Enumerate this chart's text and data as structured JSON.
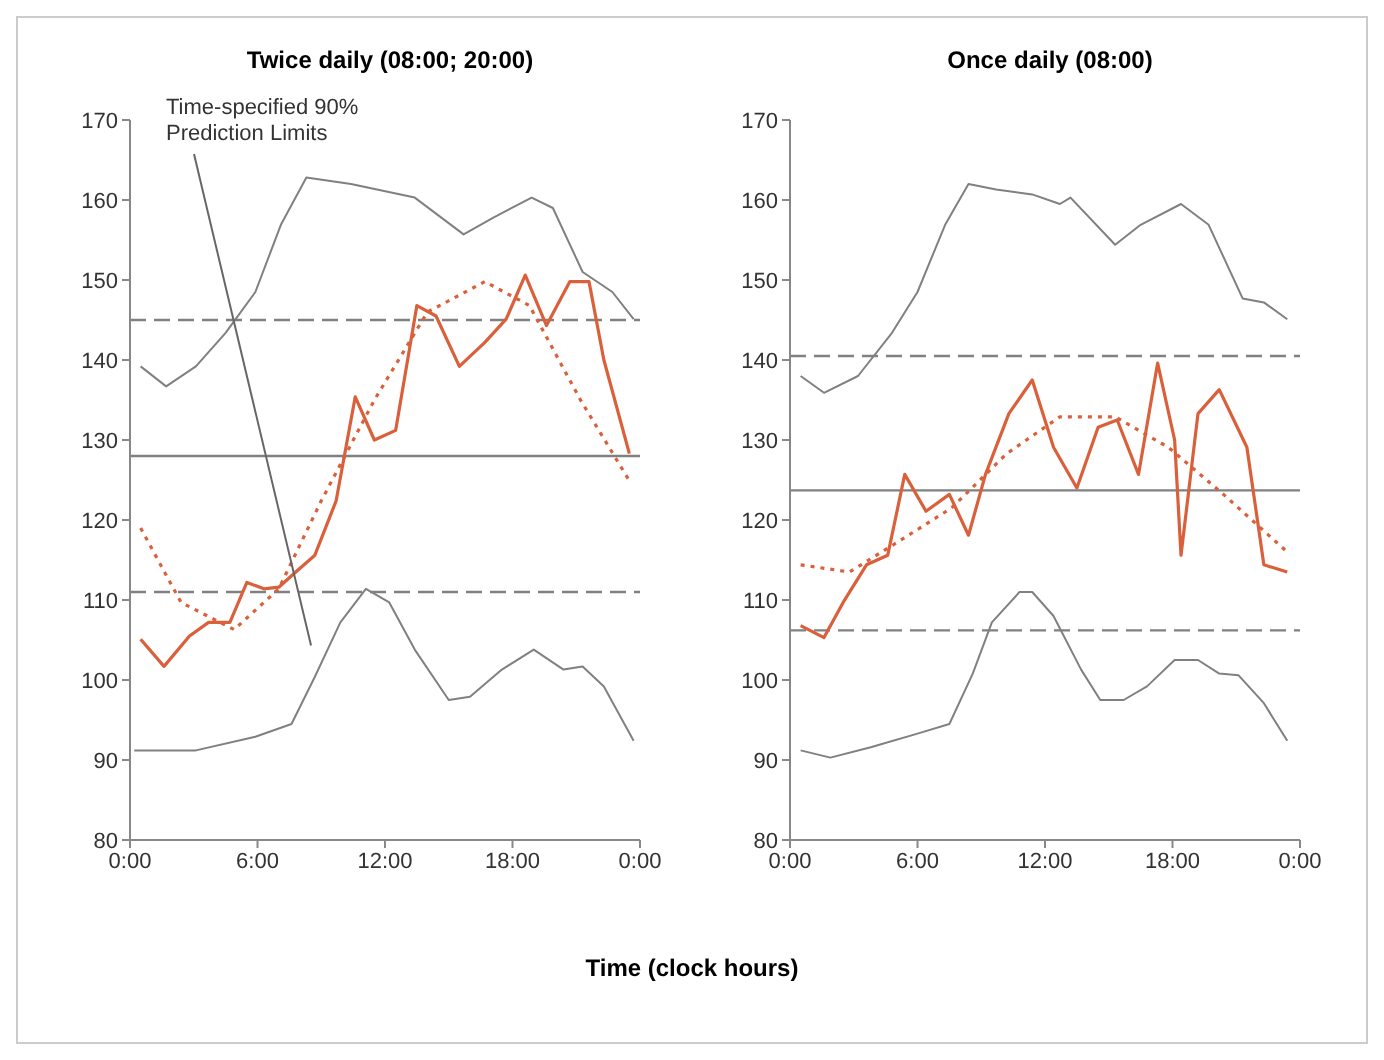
{
  "chart_data": [
    {
      "type": "line",
      "title": "Twice daily (08:00; 20:00)",
      "xlabel": "Time (clock hours)",
      "xlim": [
        0,
        24
      ],
      "xticks": [
        {
          "value": 0,
          "label": "0:00"
        },
        {
          "value": 6,
          "label": "6:00"
        },
        {
          "value": 12,
          "label": "12:00"
        },
        {
          "value": 18,
          "label": "18:00"
        },
        {
          "value": 24,
          "label": "0:00"
        }
      ],
      "ylim": [
        80,
        170
      ],
      "yticks": [
        80,
        90,
        100,
        110,
        120,
        130,
        140,
        150,
        160,
        170
      ],
      "annotations": [
        "Time-specified 90% Prediction Limits"
      ],
      "ref_lines": [
        {
          "axis": "y",
          "value": 145,
          "color": "#808080",
          "line_style": "dashed"
        },
        {
          "axis": "y",
          "value": 128,
          "color": "#808080",
          "line_style": "solid"
        },
        {
          "axis": "y",
          "value": 111,
          "color": "#808080",
          "line_style": "dashed"
        }
      ],
      "series": [
        {
          "color": "#808080",
          "line_style": "solid",
          "x": [
            0.5,
            1.7,
            3.1,
            4.5,
            5.9,
            7.1,
            8.3,
            10.4,
            13.4,
            15.7,
            17.1,
            18.9,
            19.9,
            21.3,
            22.7,
            23.7
          ],
          "values": [
            139.2,
            136.7,
            139.2,
            143.4,
            148.5,
            156.9,
            162.8,
            162,
            160.3,
            155.7,
            157.8,
            160.3,
            159,
            151,
            148.5,
            145.1
          ]
        },
        {
          "color": "#808080",
          "line_style": "solid",
          "x": [
            0.2,
            3.1,
            5.9,
            7.6,
            8.7,
            9.9,
            11.1,
            12.2,
            13.4,
            15,
            16,
            17.5,
            19,
            20.4,
            21.3,
            22.3,
            23.7
          ],
          "values": [
            91.2,
            91.2,
            92.9,
            94.5,
            100.4,
            107.2,
            111.4,
            109.7,
            103.8,
            97.5,
            97.9,
            101.3,
            103.8,
            101.3,
            101.7,
            99.2,
            92.4
          ]
        },
        {
          "color": "#d9603b",
          "line_style": "dotted",
          "x": [
            0.5,
            2.4,
            4.9,
            7,
            9,
            11.5,
            14,
            16.7,
            18.8,
            21.2,
            23.5
          ],
          "values": [
            119,
            109.7,
            106.3,
            111.4,
            122.4,
            135,
            146,
            149.8,
            146.8,
            135,
            124.9
          ]
        },
        {
          "color": "#d9603b",
          "line_style": "solid",
          "x": [
            0.5,
            1.6,
            2.8,
            3.7,
            4.7,
            5.5,
            6.3,
            7,
            7.8,
            8.7,
            9.7,
            10.6,
            11.5,
            12.5,
            13.5,
            14.4,
            15.5,
            16.7,
            17.7,
            18.6,
            19.6,
            20.7,
            21.6,
            22.3,
            23.5
          ],
          "values": [
            105.1,
            101.7,
            105.5,
            107.2,
            107.2,
            112.2,
            111.4,
            111.6,
            113.5,
            115.6,
            122.4,
            135.4,
            130,
            131.2,
            146.8,
            145.5,
            139.2,
            142.2,
            145.1,
            150.6,
            144.3,
            149.8,
            149.8,
            140,
            128.3
          ]
        }
      ]
    },
    {
      "type": "line",
      "title": "Once daily (08:00)",
      "xlim": [
        0,
        24
      ],
      "xticks": [
        {
          "value": 0,
          "label": "0:00"
        },
        {
          "value": 6,
          "label": "6:00"
        },
        {
          "value": 12,
          "label": "12:00"
        },
        {
          "value": 18,
          "label": "18:00"
        },
        {
          "value": 24,
          "label": "0:00"
        }
      ],
      "ylim": [
        80,
        170
      ],
      "yticks": [
        80,
        90,
        100,
        110,
        120,
        130,
        140,
        150,
        160,
        170
      ],
      "ref_lines": [
        {
          "axis": "y",
          "value": 140.5,
          "color": "#808080",
          "line_style": "dashed"
        },
        {
          "axis": "y",
          "value": 123.7,
          "color": "#808080",
          "line_style": "solid"
        },
        {
          "axis": "y",
          "value": 106.2,
          "color": "#808080",
          "line_style": "dashed"
        }
      ],
      "series": [
        {
          "color": "#808080",
          "line_style": "solid",
          "x": [
            0.5,
            1.6,
            3.2,
            4.8,
            6,
            7.3,
            8.4,
            9.7,
            11.4,
            12.7,
            13.2,
            15.3,
            16.5,
            18.4,
            19.7,
            21.3,
            22.3,
            23.4
          ],
          "values": [
            138,
            135.9,
            138,
            143.4,
            148.5,
            156.9,
            162,
            161.3,
            160.7,
            159.5,
            160.3,
            154.4,
            156.9,
            159.5,
            156.9,
            147.7,
            147.2,
            145.1
          ]
        },
        {
          "color": "#808080",
          "line_style": "solid",
          "x": [
            0.5,
            1.9,
            3.8,
            6,
            7.5,
            8.6,
            9.5,
            10.8,
            11.4,
            12.4,
            13.7,
            14.6,
            15.7,
            16.8,
            18.1,
            19.2,
            20.2,
            21.1,
            22.3,
            23.4
          ],
          "values": [
            91.2,
            90.3,
            91.6,
            93.3,
            94.5,
            100.8,
            107.2,
            111,
            111,
            108,
            101.3,
            97.5,
            97.5,
            99.2,
            102.5,
            102.5,
            100.8,
            100.6,
            97.1,
            92.4
          ]
        },
        {
          "color": "#d9603b",
          "line_style": "dotted",
          "x": [
            0.5,
            2.8,
            5.1,
            7.6,
            10.2,
            12.7,
            15.3,
            17.8,
            20.4,
            23.4
          ],
          "values": [
            114.4,
            113.5,
            117.3,
            121.5,
            128.3,
            132.9,
            132.9,
            129.1,
            123.2,
            116
          ]
        },
        {
          "color": "#d9603b",
          "line_style": "solid",
          "x": [
            0.5,
            1.6,
            2.5,
            3.6,
            4.6,
            5.4,
            6.4,
            7.5,
            8.4,
            9.2,
            10.3,
            11.4,
            12.4,
            13.5,
            14.5,
            15.4,
            16.4,
            17.3,
            18.1,
            18.4,
            19.2,
            20.2,
            21.5,
            22.3,
            23.4
          ],
          "values": [
            106.8,
            105.3,
            109.7,
            114.4,
            115.6,
            125.7,
            121.1,
            123.2,
            118.1,
            125.7,
            133.3,
            137.5,
            129.1,
            124,
            131.6,
            132.5,
            125.7,
            139.6,
            130,
            115.6,
            133.3,
            136.3,
            129.1,
            114.4,
            113.5
          ]
        }
      ]
    }
  ]
}
